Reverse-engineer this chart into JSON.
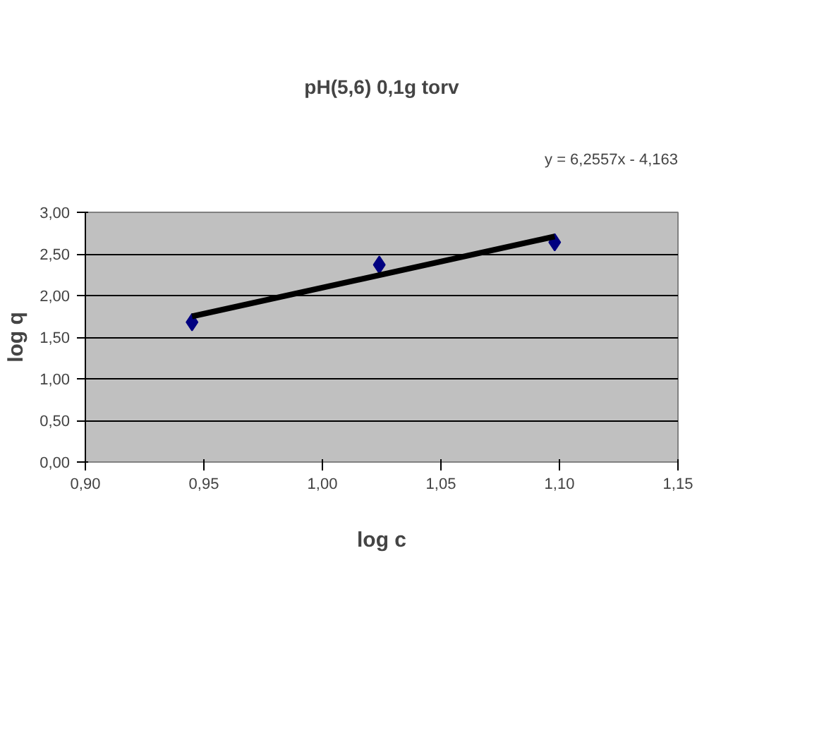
{
  "chart_data": {
    "type": "scatter",
    "title": "pH(5,6) 0,1g torv",
    "xlabel": "log c",
    "ylabel": "log q",
    "annotations": [
      "y = 6,2557x - 4,163"
    ],
    "x": [
      0.945,
      1.024,
      1.098
    ],
    "series": [
      {
        "color": "#000080",
        "values": [
          1.68,
          2.37,
          2.64
        ],
        "marker": "diamond"
      },
      {
        "type": "line",
        "color": "#000000",
        "x": [
          0.945,
          1.098
        ],
        "values": [
          1.75,
          2.71
        ]
      }
    ],
    "xlim": [
      0.9,
      1.15
    ],
    "ylim": [
      0,
      3
    ],
    "xticks": [
      {
        "value": 0.9,
        "label": "0,90"
      },
      {
        "value": 0.95,
        "label": "0,95"
      },
      {
        "value": 1.0,
        "label": "1,00"
      },
      {
        "value": 1.05,
        "label": "1,05"
      },
      {
        "value": 1.1,
        "label": "1,10"
      },
      {
        "value": 1.15,
        "label": "1,15"
      }
    ],
    "yticks": [
      {
        "value": 0,
        "label": "0,00"
      },
      {
        "value": 0.5,
        "label": "0,50"
      },
      {
        "value": 1.0,
        "label": "1,00"
      },
      {
        "value": 1.5,
        "label": "1,50"
      },
      {
        "value": 2.0,
        "label": "2,00"
      },
      {
        "value": 2.5,
        "label": "2,50"
      },
      {
        "value": 3.0,
        "label": "3,00"
      }
    ],
    "grid": "y"
  }
}
